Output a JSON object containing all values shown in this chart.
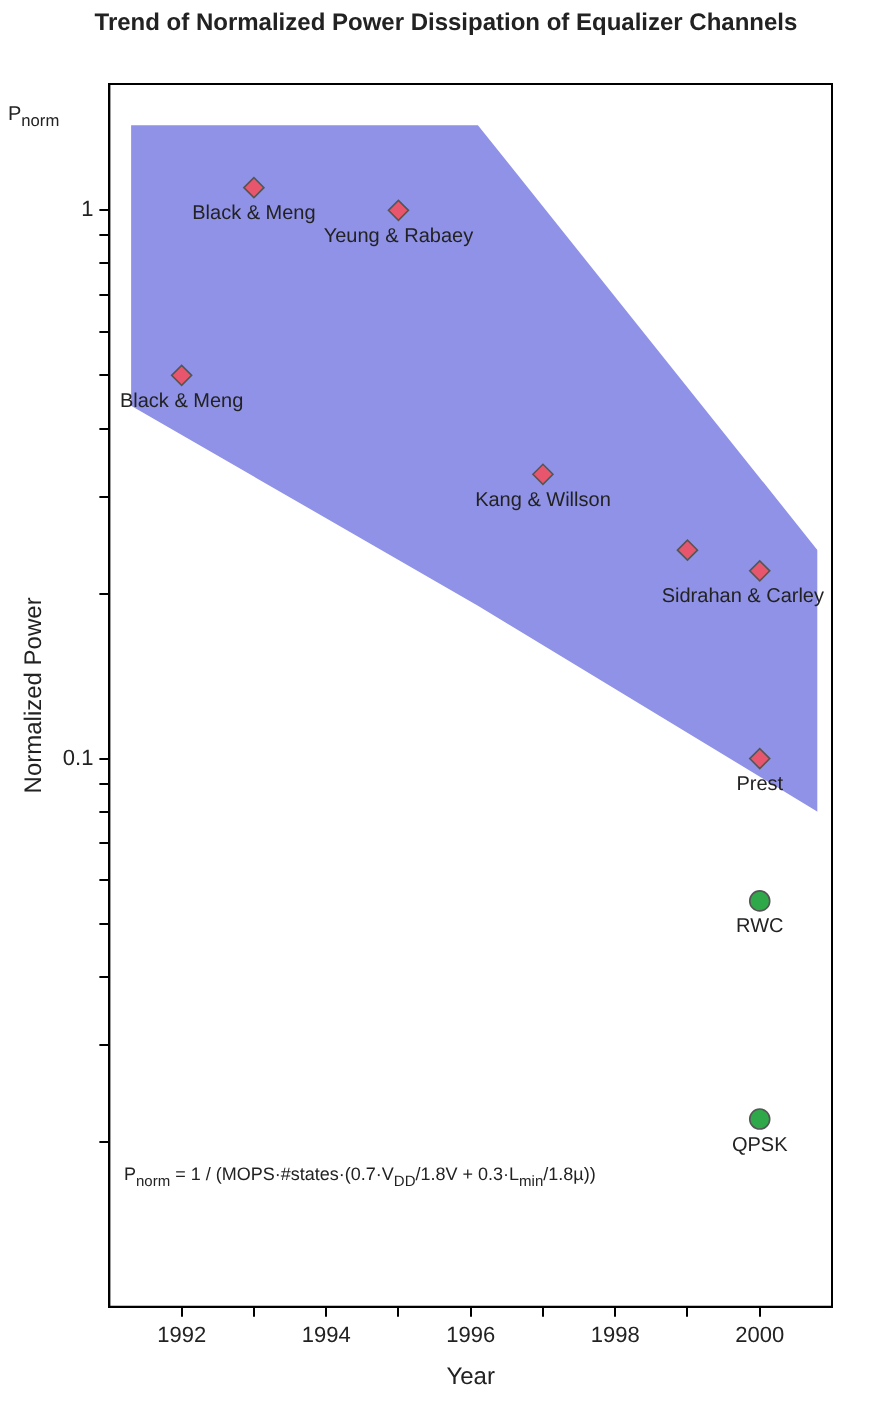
{
  "chart_data": {
    "type": "scatter",
    "title": "Trend of Normalized Power Dissipation of Equalizer Channels",
    "xlabel": "Year",
    "ylabel": "Normalized Power",
    "xlim": [
      1991,
      2001
    ],
    "xticks": [
      1992,
      {
        "value": 1993,
        "label": null
      },
      1994,
      {
        "value": 1995,
        "label": null
      },
      1996,
      {
        "value": 1997,
        "label": null
      },
      1998,
      {
        "value": 1999,
        "label": null
      },
      2000
    ],
    "ylim": [
      0.01,
      1.7
    ],
    "log": "y",
    "yticks": [
      {
        "value": 0.02,
        "label": null
      },
      {
        "value": 0.03,
        "label": null
      },
      {
        "value": 0.04,
        "label": null
      },
      {
        "value": 0.05,
        "label": null
      },
      {
        "value": 0.06,
        "label": null
      },
      {
        "value": 0.07,
        "label": null
      },
      {
        "value": 0.08,
        "label": null
      },
      {
        "value": 0.09,
        "label": null
      },
      0.1,
      {
        "value": 0.2,
        "label": null
      },
      {
        "value": 0.3,
        "label": null
      },
      {
        "value": 0.4,
        "label": null
      },
      {
        "value": 0.5,
        "label": null
      },
      {
        "value": 0.6,
        "label": null
      },
      {
        "value": 0.7,
        "label": null
      },
      {
        "value": 0.8,
        "label": null
      },
      {
        "value": 0.9,
        "label": null
      },
      1
    ],
    "grid": false,
    "legend": false,
    "series": [
      {
        "type": "line",
        "color": "#8f92e6",
        "x": [
          1991.3,
          1996.1,
          2000.8
        ],
        "values": [
          null,
          null,
          null
        ],
        "lower": [
          0.44,
          0.19,
          0.08
        ],
        "upper": [
          1.43,
          1.43,
          0.24
        ]
      },
      {
        "marker": "diamond",
        "color": "#e8566e",
        "x": [
          1992,
          1993,
          1995,
          1997,
          1999,
          2000,
          2000
        ],
        "values": [
          0.5,
          1.1,
          1.0,
          0.33,
          0.24,
          0.22,
          0.1
        ]
      },
      {
        "marker": "circle",
        "color": "#2fa84a",
        "x": [
          2000,
          2000
        ],
        "values": [
          0.055,
          0.022
        ]
      }
    ],
    "annotations": [
      {
        "text": "Black & Meng",
        "x": 1992,
        "y": 0.5
      },
      {
        "text": "Black & Meng",
        "x": 1993,
        "y": 1.1
      },
      {
        "text": "Yeung & Rabaey",
        "x": 1995,
        "y": 1.0
      },
      {
        "text": "Kang & Willson",
        "x": 1997,
        "y": 0.33
      },
      {
        "text": "Sidrahan & Carley",
        "x": 2000,
        "y": 0.22
      },
      {
        "text": "Prest",
        "x": 2000,
        "y": 0.1
      },
      {
        "text": "RWC",
        "x": 2000,
        "y": 0.055
      },
      {
        "text": "QPSK",
        "x": 2000,
        "y": 0.022
      },
      "P$_{norm}$",
      "P$_{norm}$ = 1 / (MOPS·#states·(0.7·V$_{DD}$/1.8V + 0.3·L$_{min}$/1.8µ))"
    ]
  }
}
